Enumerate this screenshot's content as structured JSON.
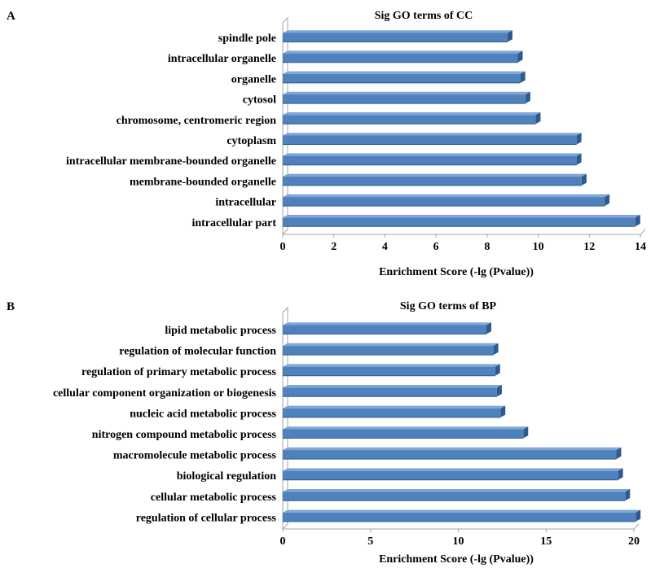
{
  "colors": {
    "bar_front": "#4F81BD",
    "bar_top": "#7FA6D6",
    "bar_side": "#2F5A8F",
    "axis": "#A6A6A6"
  },
  "chart_data": [
    {
      "type": "bar",
      "orientation": "horizontal",
      "panel": "A",
      "title": "Sig GO terms of CC",
      "xlabel": "Enrichment Score (-lg (Pvalue))",
      "ylabel": "",
      "xlim": [
        0,
        14
      ],
      "xticks": [
        0,
        2,
        4,
        6,
        8,
        10,
        12,
        14
      ],
      "grid": false,
      "legend": "none",
      "categories": [
        "spindle pole",
        "intracellular organelle",
        "organelle",
        "cytosol",
        "chromosome, centromeric region",
        "cytoplasm",
        "intracellular membrane-bounded organelle",
        "membrane-bounded organelle",
        "intracellular",
        "intracellular part"
      ],
      "values": [
        8.8,
        9.2,
        9.3,
        9.5,
        9.9,
        11.5,
        11.5,
        11.7,
        12.6,
        13.8
      ]
    },
    {
      "type": "bar",
      "orientation": "horizontal",
      "panel": "B",
      "title": "Sig GO terms of BP",
      "xlabel": "Enrichment Score (-lg (Pvalue))",
      "ylabel": "",
      "xlim": [
        0,
        20
      ],
      "xticks": [
        0,
        5,
        10,
        15,
        20
      ],
      "grid": false,
      "legend": "none",
      "categories": [
        "lipid metabolic process",
        "regulation of molecular function",
        "regulation of primary metabolic process",
        "cellular component organization or biogenesis",
        "nucleic acid metabolic process",
        "nitrogen compound metabolic process",
        "macromolecule metabolic process",
        "biological regulation",
        "cellular metabolic process",
        "regulation of cellular process"
      ],
      "values": [
        11.6,
        12.0,
        12.1,
        12.2,
        12.4,
        13.7,
        19.0,
        19.1,
        19.5,
        20.1
      ]
    }
  ]
}
